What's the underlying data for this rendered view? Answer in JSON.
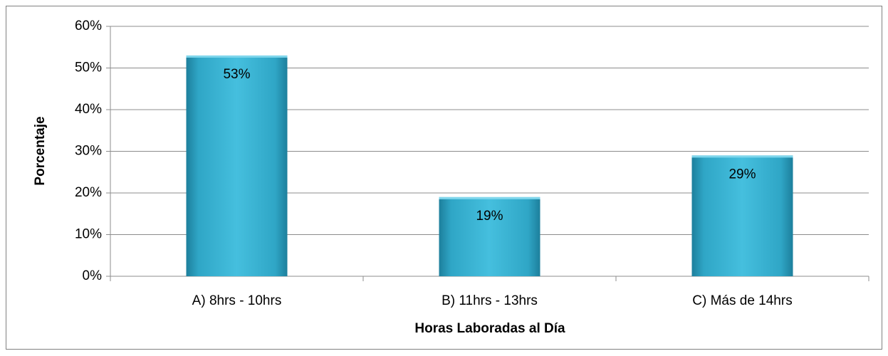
{
  "chart_data": {
    "type": "bar",
    "x_label": "Horas Laboradas al Día",
    "y_label": "Porcentaje",
    "categories": [
      "A) 8hrs - 10hrs",
      "B) 11hrs - 13hrs",
      "C) Más de 14hrs"
    ],
    "values": [
      53,
      19,
      29
    ],
    "value_labels": [
      "53%",
      "19%",
      "29%"
    ],
    "color": "#2fa6c6",
    "ylim": [
      0,
      60
    ],
    "yticks": [
      {
        "value": 0,
        "label": "0%"
      },
      {
        "value": 10,
        "label": "10%"
      },
      {
        "value": 20,
        "label": "20%"
      },
      {
        "value": 30,
        "label": "30%"
      },
      {
        "value": 40,
        "label": "40%"
      },
      {
        "value": 50,
        "label": "50%"
      },
      {
        "value": 60,
        "label": "60%"
      }
    ],
    "grid": true
  }
}
